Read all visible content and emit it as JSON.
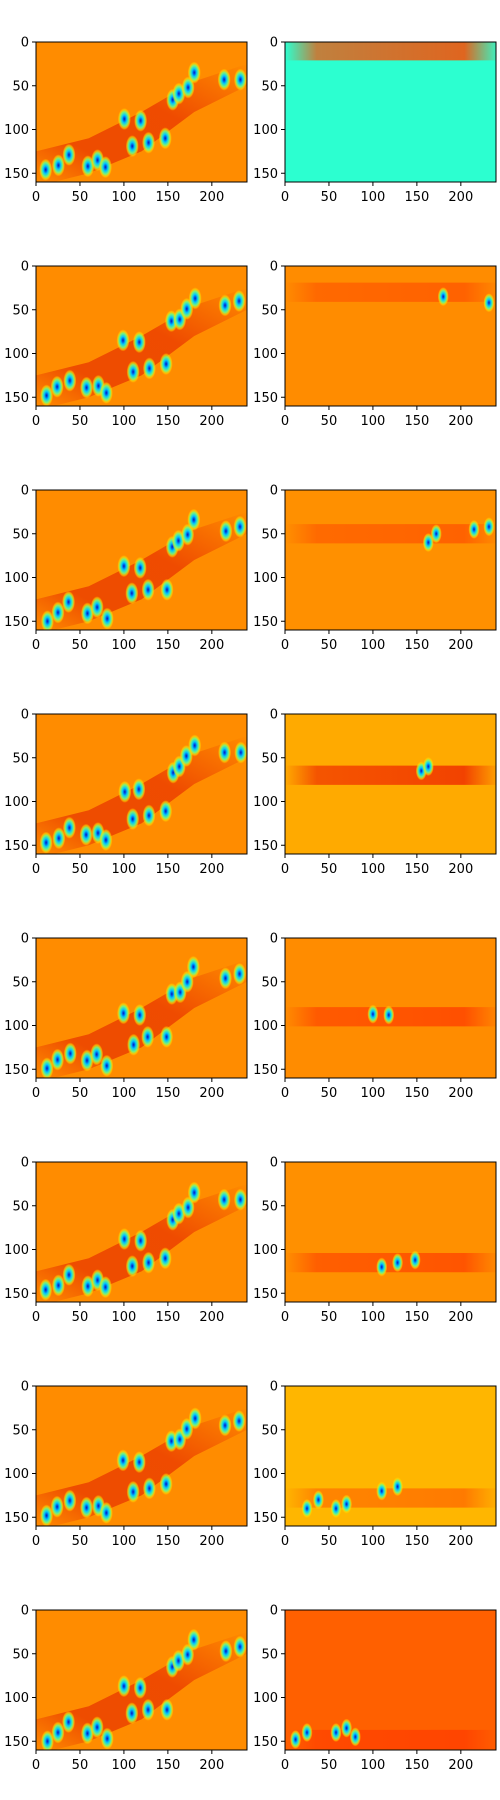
{
  "chart_data": {
    "type": "heatmap",
    "layout": "8 rows x 2 columns of heatmap panels",
    "colormap": "jet",
    "grid": false,
    "axes": {
      "x_ticks": [
        0,
        50,
        100,
        150,
        200
      ],
      "y_ticks": [
        0,
        50,
        100,
        150
      ],
      "xlim": [
        0,
        240
      ],
      "ylim": [
        160,
        0
      ],
      "y_inverted": true
    },
    "image_size": {
      "width": 240,
      "height": 160
    },
    "panels": [
      {
        "row": 0,
        "col": 0,
        "kind": "full",
        "variant": 0
      },
      {
        "row": 0,
        "col": 1,
        "kind": "band",
        "band_center_y": 10,
        "background": "#2cffd0",
        "band_color": "#ff4a00"
      },
      {
        "row": 1,
        "col": 0,
        "kind": "full",
        "variant": 1
      },
      {
        "row": 1,
        "col": 1,
        "kind": "band",
        "band_center_y": 30,
        "background": "#ff8c00",
        "band_color": "#ff5a00"
      },
      {
        "row": 2,
        "col": 0,
        "kind": "full",
        "variant": 2
      },
      {
        "row": 2,
        "col": 1,
        "kind": "band",
        "band_center_y": 50,
        "background": "#ff9000",
        "band_color": "#ff5a00"
      },
      {
        "row": 3,
        "col": 0,
        "kind": "full",
        "variant": 3
      },
      {
        "row": 3,
        "col": 1,
        "kind": "band",
        "band_center_y": 70,
        "background": "#ffaa00",
        "band_color": "#f03000"
      },
      {
        "row": 4,
        "col": 0,
        "kind": "full",
        "variant": 4
      },
      {
        "row": 4,
        "col": 1,
        "kind": "band",
        "band_center_y": 90,
        "background": "#ff8c00",
        "band_color": "#ff4500"
      },
      {
        "row": 5,
        "col": 0,
        "kind": "full",
        "variant": 5
      },
      {
        "row": 5,
        "col": 1,
        "kind": "band",
        "band_center_y": 115,
        "background": "#ff9000",
        "band_color": "#ff4a00"
      },
      {
        "row": 6,
        "col": 0,
        "kind": "full",
        "variant": 6
      },
      {
        "row": 6,
        "col": 1,
        "kind": "band",
        "band_center_y": 128,
        "background": "#ffb600",
        "band_color": "#ff7000"
      },
      {
        "row": 7,
        "col": 0,
        "kind": "full",
        "variant": 7
      },
      {
        "row": 7,
        "col": 1,
        "kind": "band",
        "band_center_y": 148,
        "background": "#ff6000",
        "band_color": "#ff4000"
      }
    ],
    "blobs": [
      {
        "x": 12,
        "y": 148
      },
      {
        "x": 25,
        "y": 140
      },
      {
        "x": 38,
        "y": 130
      },
      {
        "x": 58,
        "y": 140
      },
      {
        "x": 70,
        "y": 135
      },
      {
        "x": 80,
        "y": 145
      },
      {
        "x": 100,
        "y": 87
      },
      {
        "x": 110,
        "y": 120
      },
      {
        "x": 118,
        "y": 88
      },
      {
        "x": 128,
        "y": 115
      },
      {
        "x": 148,
        "y": 112
      },
      {
        "x": 155,
        "y": 65
      },
      {
        "x": 163,
        "y": 60
      },
      {
        "x": 172,
        "y": 50
      },
      {
        "x": 180,
        "y": 35
      },
      {
        "x": 215,
        "y": 45
      },
      {
        "x": 232,
        "y": 42
      }
    ]
  }
}
